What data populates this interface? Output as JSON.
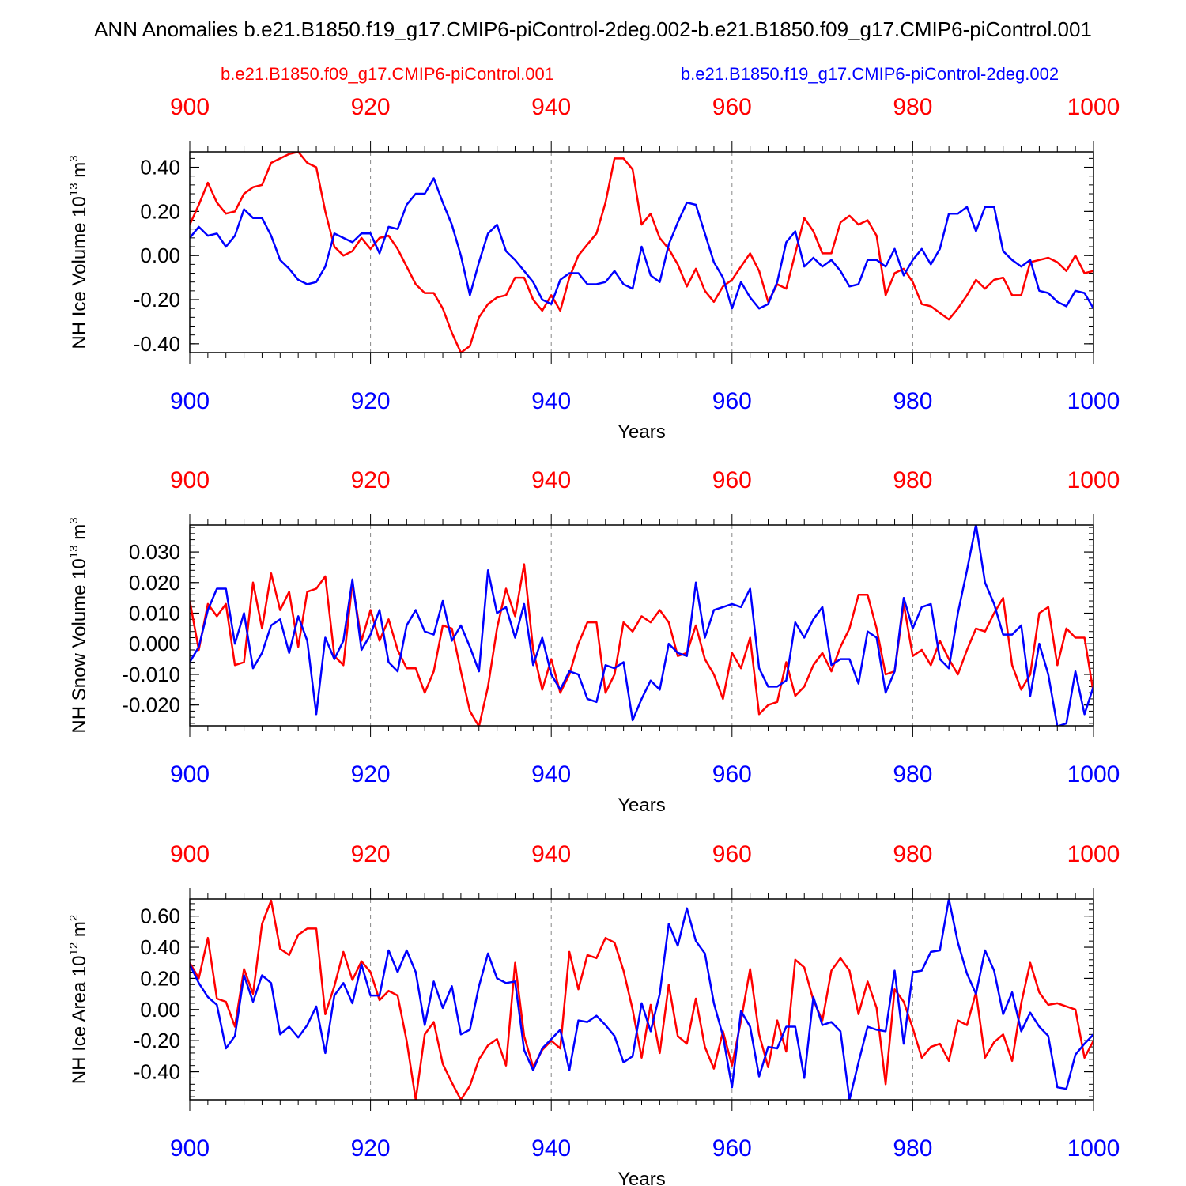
{
  "title": "ANN Anomalies b.e21.B1850.f19_g17.CMIP6-piControl-2deg.002-b.e21.B1850.f09_g17.CMIP6-piControl.001",
  "legend": {
    "red_label": "b.e21.B1850.f09_g17.CMIP6-piControl.001",
    "blue_label": "b.e21.B1850.f19_g17.CMIP6-piControl-2deg.002"
  },
  "colors": {
    "red": "#ff0000",
    "blue": "#0000ff",
    "axis": "#000000",
    "grid": "#888888"
  },
  "chart_data": [
    {
      "type": "line",
      "title": "",
      "xlabel": "Years",
      "ylabel": "NH Ice Volume 10^13 m^3",
      "ylabel_parts": {
        "base": "NH Ice Volume 10",
        "exp1": "13",
        "mid": " m",
        "exp2": "3"
      },
      "xlim": [
        900,
        1000
      ],
      "ylim": [
        -0.44,
        0.47
      ],
      "x_ticks": [
        900,
        920,
        940,
        960,
        980,
        1000
      ],
      "x_tick_labels": [
        "900",
        "920",
        "940",
        "960",
        "980",
        "1000"
      ],
      "y_ticks": [
        -0.4,
        -0.2,
        0.0,
        0.2,
        0.4
      ],
      "y_tick_labels": [
        "-0.40",
        "-0.20",
        "0.00",
        "0.20",
        "0.40"
      ],
      "vgrid": [
        920,
        940,
        960,
        980
      ],
      "series": [
        {
          "name": "b.e21.B1850.f09_g17.CMIP6-piControl.001",
          "color": "red",
          "x_start": 900,
          "values": [
            0.14,
            0.23,
            0.33,
            0.24,
            0.19,
            0.2,
            0.28,
            0.31,
            0.32,
            0.42,
            0.44,
            0.46,
            0.47,
            0.42,
            0.4,
            0.2,
            0.04,
            0.0,
            0.02,
            0.08,
            0.03,
            0.08,
            0.09,
            0.03,
            -0.05,
            -0.13,
            -0.17,
            -0.17,
            -0.24,
            -0.35,
            -0.44,
            -0.41,
            -0.28,
            -0.22,
            -0.19,
            -0.18,
            -0.1,
            -0.1,
            -0.2,
            -0.25,
            -0.18,
            -0.25,
            -0.1,
            0.0,
            0.05,
            0.1,
            0.24,
            0.44,
            0.44,
            0.39,
            0.14,
            0.19,
            0.08,
            0.03,
            -0.04,
            -0.14,
            -0.06,
            -0.16,
            -0.21,
            -0.14,
            -0.11,
            -0.05,
            0.01,
            -0.07,
            -0.21,
            -0.13,
            -0.15,
            0.01,
            0.17,
            0.11,
            0.01,
            0.01,
            0.15,
            0.18,
            0.14,
            0.16,
            0.09,
            -0.18,
            -0.08,
            -0.06,
            -0.12,
            -0.22,
            -0.23,
            -0.26,
            -0.29,
            -0.24,
            -0.18,
            -0.11,
            -0.15,
            -0.11,
            -0.1,
            -0.18,
            -0.18,
            -0.03,
            -0.02,
            -0.01,
            -0.03,
            -0.07,
            0.0,
            -0.08,
            -0.07
          ]
        },
        {
          "name": "b.e21.B1850.f19_g17.CMIP6-piControl-2deg.002",
          "color": "blue",
          "x_start": 900,
          "values": [
            0.08,
            0.13,
            0.09,
            0.1,
            0.04,
            0.09,
            0.21,
            0.17,
            0.17,
            0.09,
            -0.02,
            -0.06,
            -0.11,
            -0.13,
            -0.12,
            -0.05,
            0.1,
            0.08,
            0.06,
            0.1,
            0.1,
            0.01,
            0.13,
            0.12,
            0.23,
            0.28,
            0.28,
            0.35,
            0.24,
            0.14,
            0.0,
            -0.18,
            -0.03,
            0.1,
            0.14,
            0.02,
            -0.02,
            -0.07,
            -0.12,
            -0.2,
            -0.22,
            -0.11,
            -0.08,
            -0.08,
            -0.13,
            -0.13,
            -0.12,
            -0.07,
            -0.13,
            -0.15,
            0.04,
            -0.09,
            -0.12,
            0.05,
            0.15,
            0.24,
            0.23,
            0.1,
            -0.03,
            -0.1,
            -0.24,
            -0.12,
            -0.19,
            -0.24,
            -0.22,
            -0.12,
            0.06,
            0.11,
            -0.05,
            -0.01,
            -0.05,
            -0.02,
            -0.07,
            -0.14,
            -0.13,
            -0.02,
            -0.02,
            -0.05,
            0.03,
            -0.09,
            -0.02,
            0.03,
            -0.04,
            0.03,
            0.19,
            0.19,
            0.22,
            0.11,
            0.22,
            0.22,
            0.02,
            -0.02,
            -0.05,
            -0.02,
            -0.16,
            -0.17,
            -0.21,
            -0.23,
            -0.16,
            -0.17,
            -0.24
          ]
        }
      ]
    },
    {
      "type": "line",
      "title": "",
      "xlabel": "Years",
      "ylabel": "NH Snow Volume 10^13 m^3",
      "ylabel_parts": {
        "base": "NH Snow Volume 10",
        "exp1": "13",
        "mid": " m",
        "exp2": "3"
      },
      "xlim": [
        900,
        1000
      ],
      "ylim": [
        -0.0268,
        0.0388
      ],
      "x_ticks": [
        900,
        920,
        940,
        960,
        980,
        1000
      ],
      "x_tick_labels": [
        "900",
        "920",
        "940",
        "960",
        "980",
        "1000"
      ],
      "y_ticks": [
        -0.02,
        -0.01,
        0.0,
        0.01,
        0.02,
        0.03
      ],
      "y_tick_labels": [
        "-0.020",
        "-0.010",
        "0.000",
        "0.010",
        "0.020",
        "0.030"
      ],
      "vgrid": [
        920,
        940,
        960,
        980
      ],
      "series": [
        {
          "name": "b.e21.B1850.f09_g17.CMIP6-piControl.001",
          "color": "red",
          "x_start": 900,
          "values": [
            0.014,
            -0.002,
            0.013,
            0.009,
            0.013,
            -0.007,
            -0.006,
            0.02,
            0.005,
            0.023,
            0.011,
            0.017,
            -0.001,
            0.017,
            0.018,
            0.022,
            -0.004,
            -0.007,
            0.02,
            0.001,
            0.011,
            0.001,
            0.008,
            -0.002,
            -0.008,
            -0.008,
            -0.016,
            -0.009,
            0.006,
            0.005,
            -0.009,
            -0.022,
            -0.027,
            -0.014,
            0.005,
            0.018,
            0.009,
            0.026,
            -0.002,
            -0.015,
            -0.005,
            -0.016,
            -0.01,
            0.0,
            0.007,
            0.007,
            -0.016,
            -0.01,
            0.007,
            0.004,
            0.009,
            0.007,
            0.011,
            0.007,
            -0.004,
            -0.003,
            0.006,
            -0.005,
            -0.01,
            -0.018,
            -0.003,
            -0.008,
            0.002,
            -0.023,
            -0.02,
            -0.019,
            -0.006,
            -0.017,
            -0.014,
            -0.007,
            -0.003,
            -0.009,
            -0.001,
            0.005,
            0.016,
            0.016,
            0.005,
            -0.01,
            -0.009,
            0.013,
            -0.004,
            -0.002,
            -0.007,
            0.001,
            -0.005,
            -0.01,
            -0.002,
            0.005,
            0.004,
            0.01,
            0.015,
            -0.007,
            -0.015,
            -0.01,
            0.01,
            0.012,
            -0.007,
            0.005,
            0.002,
            0.002,
            -0.016
          ]
        },
        {
          "name": "b.e21.B1850.f19_g17.CMIP6-piControl-2deg.002",
          "color": "blue",
          "x_start": 900,
          "values": [
            -0.006,
            -0.001,
            0.011,
            0.018,
            0.018,
            0.0,
            0.01,
            -0.008,
            -0.003,
            0.006,
            0.008,
            -0.003,
            0.009,
            0.001,
            -0.023,
            0.002,
            -0.005,
            0.001,
            0.021,
            -0.002,
            0.003,
            0.011,
            -0.006,
            -0.009,
            0.006,
            0.011,
            0.004,
            0.003,
            0.014,
            0.001,
            0.006,
            -0.001,
            -0.009,
            0.024,
            0.01,
            0.012,
            0.002,
            0.013,
            -0.007,
            0.002,
            -0.01,
            -0.015,
            -0.009,
            -0.01,
            -0.018,
            -0.019,
            -0.007,
            -0.008,
            -0.006,
            -0.025,
            -0.018,
            -0.012,
            -0.015,
            0.0,
            -0.003,
            -0.004,
            0.02,
            0.002,
            0.011,
            0.012,
            0.013,
            0.012,
            0.018,
            -0.008,
            -0.014,
            -0.014,
            -0.012,
            0.007,
            0.002,
            0.008,
            0.012,
            -0.007,
            -0.005,
            -0.005,
            -0.013,
            0.004,
            0.002,
            -0.016,
            -0.009,
            0.015,
            0.005,
            0.012,
            0.013,
            -0.005,
            -0.008,
            0.01,
            0.024,
            0.039,
            0.02,
            0.013,
            0.003,
            0.003,
            0.006,
            -0.017,
            0.0,
            -0.01,
            -0.027,
            -0.026,
            -0.009,
            -0.023,
            -0.014
          ]
        }
      ]
    },
    {
      "type": "line",
      "title": "",
      "xlabel": "Years",
      "ylabel": "NH Ice Area 10^12 m^2",
      "ylabel_parts": {
        "base": "NH Ice Area 10",
        "exp1": "12",
        "mid": " m",
        "exp2": "2"
      },
      "xlim": [
        900,
        1000
      ],
      "ylim": [
        -0.58,
        0.71
      ],
      "x_ticks": [
        900,
        920,
        940,
        960,
        980,
        1000
      ],
      "x_tick_labels": [
        "900",
        "920",
        "940",
        "960",
        "980",
        "1000"
      ],
      "y_ticks": [
        -0.4,
        -0.2,
        0.0,
        0.2,
        0.4,
        0.6
      ],
      "y_tick_labels": [
        "-0.40",
        "-0.20",
        "0.00",
        "0.20",
        "0.40",
        "0.60"
      ],
      "vgrid": [
        920,
        940,
        960,
        980
      ],
      "series": [
        {
          "name": "b.e21.B1850.f09_g17.CMIP6-piControl.001",
          "color": "red",
          "x_start": 900,
          "values": [
            0.3,
            0.2,
            0.46,
            0.07,
            0.05,
            -0.11,
            0.26,
            0.1,
            0.55,
            0.7,
            0.39,
            0.35,
            0.48,
            0.52,
            0.52,
            -0.03,
            0.15,
            0.37,
            0.19,
            0.31,
            0.24,
            0.06,
            0.12,
            0.09,
            -0.2,
            -0.58,
            -0.16,
            -0.08,
            -0.35,
            -0.47,
            -0.58,
            -0.49,
            -0.32,
            -0.23,
            -0.19,
            -0.36,
            0.3,
            -0.17,
            -0.37,
            -0.26,
            -0.2,
            -0.25,
            0.37,
            0.13,
            0.35,
            0.33,
            0.46,
            0.43,
            0.25,
            0.0,
            -0.31,
            0.03,
            -0.28,
            0.16,
            -0.17,
            -0.22,
            0.07,
            -0.24,
            -0.38,
            -0.14,
            -0.36,
            -0.07,
            0.26,
            -0.16,
            -0.37,
            -0.07,
            -0.27,
            0.32,
            0.27,
            0.06,
            -0.07,
            0.25,
            0.33,
            0.25,
            -0.03,
            0.18,
            0.01,
            -0.48,
            0.13,
            0.05,
            -0.12,
            -0.31,
            -0.24,
            -0.22,
            -0.33,
            -0.07,
            -0.1,
            0.11,
            -0.31,
            -0.21,
            -0.16,
            -0.33,
            0.04,
            0.3,
            0.11,
            0.03,
            0.04,
            0.02,
            0.0,
            -0.31,
            -0.2
          ]
        },
        {
          "name": "b.e21.B1850.f19_g17.CMIP6-piControl-2deg.002",
          "color": "blue",
          "x_start": 900,
          "values": [
            0.29,
            0.17,
            0.08,
            0.03,
            -0.25,
            -0.17,
            0.22,
            0.05,
            0.22,
            0.17,
            -0.16,
            -0.11,
            -0.18,
            -0.1,
            0.02,
            -0.28,
            0.09,
            0.17,
            0.04,
            0.29,
            0.09,
            0.09,
            0.38,
            0.24,
            0.38,
            0.24,
            -0.1,
            0.18,
            0.01,
            0.15,
            -0.16,
            -0.13,
            0.15,
            0.36,
            0.2,
            0.17,
            0.18,
            -0.26,
            -0.39,
            -0.25,
            -0.19,
            -0.13,
            -0.39,
            -0.07,
            -0.08,
            -0.04,
            -0.1,
            -0.17,
            -0.34,
            -0.3,
            0.04,
            -0.14,
            0.1,
            0.55,
            0.41,
            0.65,
            0.44,
            0.36,
            0.04,
            -0.17,
            -0.5,
            -0.01,
            -0.11,
            -0.43,
            -0.24,
            -0.25,
            -0.11,
            -0.11,
            -0.44,
            0.08,
            -0.1,
            -0.08,
            -0.14,
            -0.58,
            -0.34,
            -0.11,
            -0.13,
            -0.14,
            0.25,
            -0.22,
            0.24,
            0.25,
            0.37,
            0.38,
            0.71,
            0.43,
            0.23,
            0.1,
            0.38,
            0.25,
            -0.03,
            0.11,
            -0.14,
            -0.02,
            -0.11,
            -0.17,
            -0.5,
            -0.51,
            -0.29,
            -0.22,
            -0.16
          ]
        }
      ]
    }
  ]
}
